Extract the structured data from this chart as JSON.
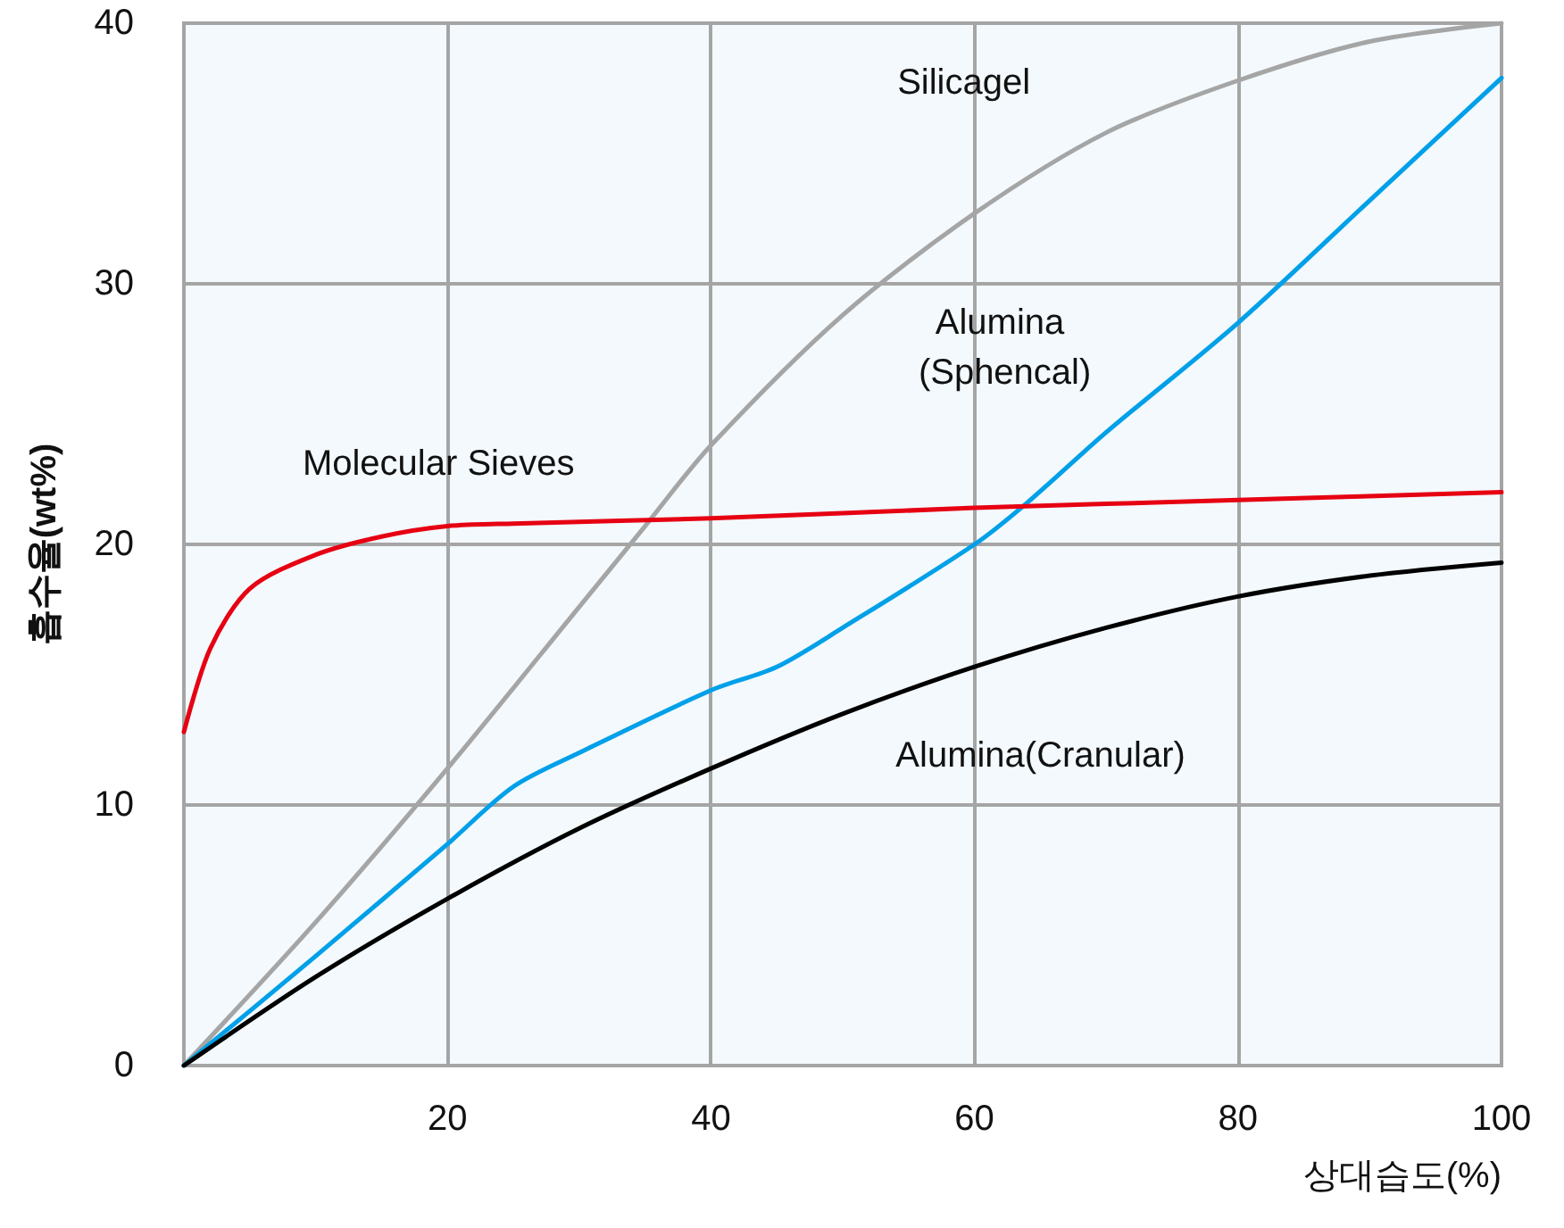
{
  "chart_data": {
    "type": "line",
    "xlabel": "상대습도(%)",
    "ylabel": "흡수율(wt%)",
    "xlim": [
      0,
      100
    ],
    "xticks": [
      {
        "value": 0,
        "label": null
      },
      20,
      40,
      60,
      80,
      100
    ],
    "ylim": [
      0,
      40
    ],
    "yticks": [
      0,
      10,
      20,
      30,
      40
    ],
    "grid": true,
    "legend": false,
    "marker": "none",
    "line_style": "solid",
    "series": [
      {
        "name": "Silicagel",
        "color": "#a5a5a5",
        "x": [
          0,
          10,
          20,
          30,
          35,
          40,
          50,
          60,
          70,
          80,
          90,
          100
        ],
        "values": [
          0,
          5.5,
          11.4,
          17.6,
          20.7,
          23.8,
          28.8,
          32.7,
          35.8,
          37.8,
          39.3,
          40
        ]
      },
      {
        "name": "Alumina (Sphencal)",
        "color": "#00a0e9",
        "x": [
          0,
          10,
          20,
          25,
          30,
          40,
          45,
          50,
          60,
          64,
          70,
          80,
          90,
          100
        ],
        "values": [
          0,
          4.2,
          8.5,
          10.7,
          12,
          14.4,
          15.3,
          16.8,
          20,
          21.6,
          24.3,
          28.5,
          33.2,
          37.9
        ]
      },
      {
        "name": "Molecular Sieves",
        "color": "#e60012",
        "x": [
          0,
          2,
          5,
          10,
          15,
          20,
          25,
          40,
          60,
          80,
          100
        ],
        "values": [
          12.8,
          16,
          18.3,
          19.6,
          20.3,
          20.7,
          20.8,
          21,
          21.4,
          21.7,
          22
        ]
      },
      {
        "name": "Alumina(Cranular)",
        "color": "#000000",
        "x": [
          0,
          10,
          20,
          30,
          40,
          50,
          60,
          70,
          80,
          90,
          100
        ],
        "values": [
          0,
          3.4,
          6.4,
          9.1,
          11.4,
          13.5,
          15.3,
          16.8,
          18,
          18.8,
          19.3
        ]
      }
    ]
  }
}
